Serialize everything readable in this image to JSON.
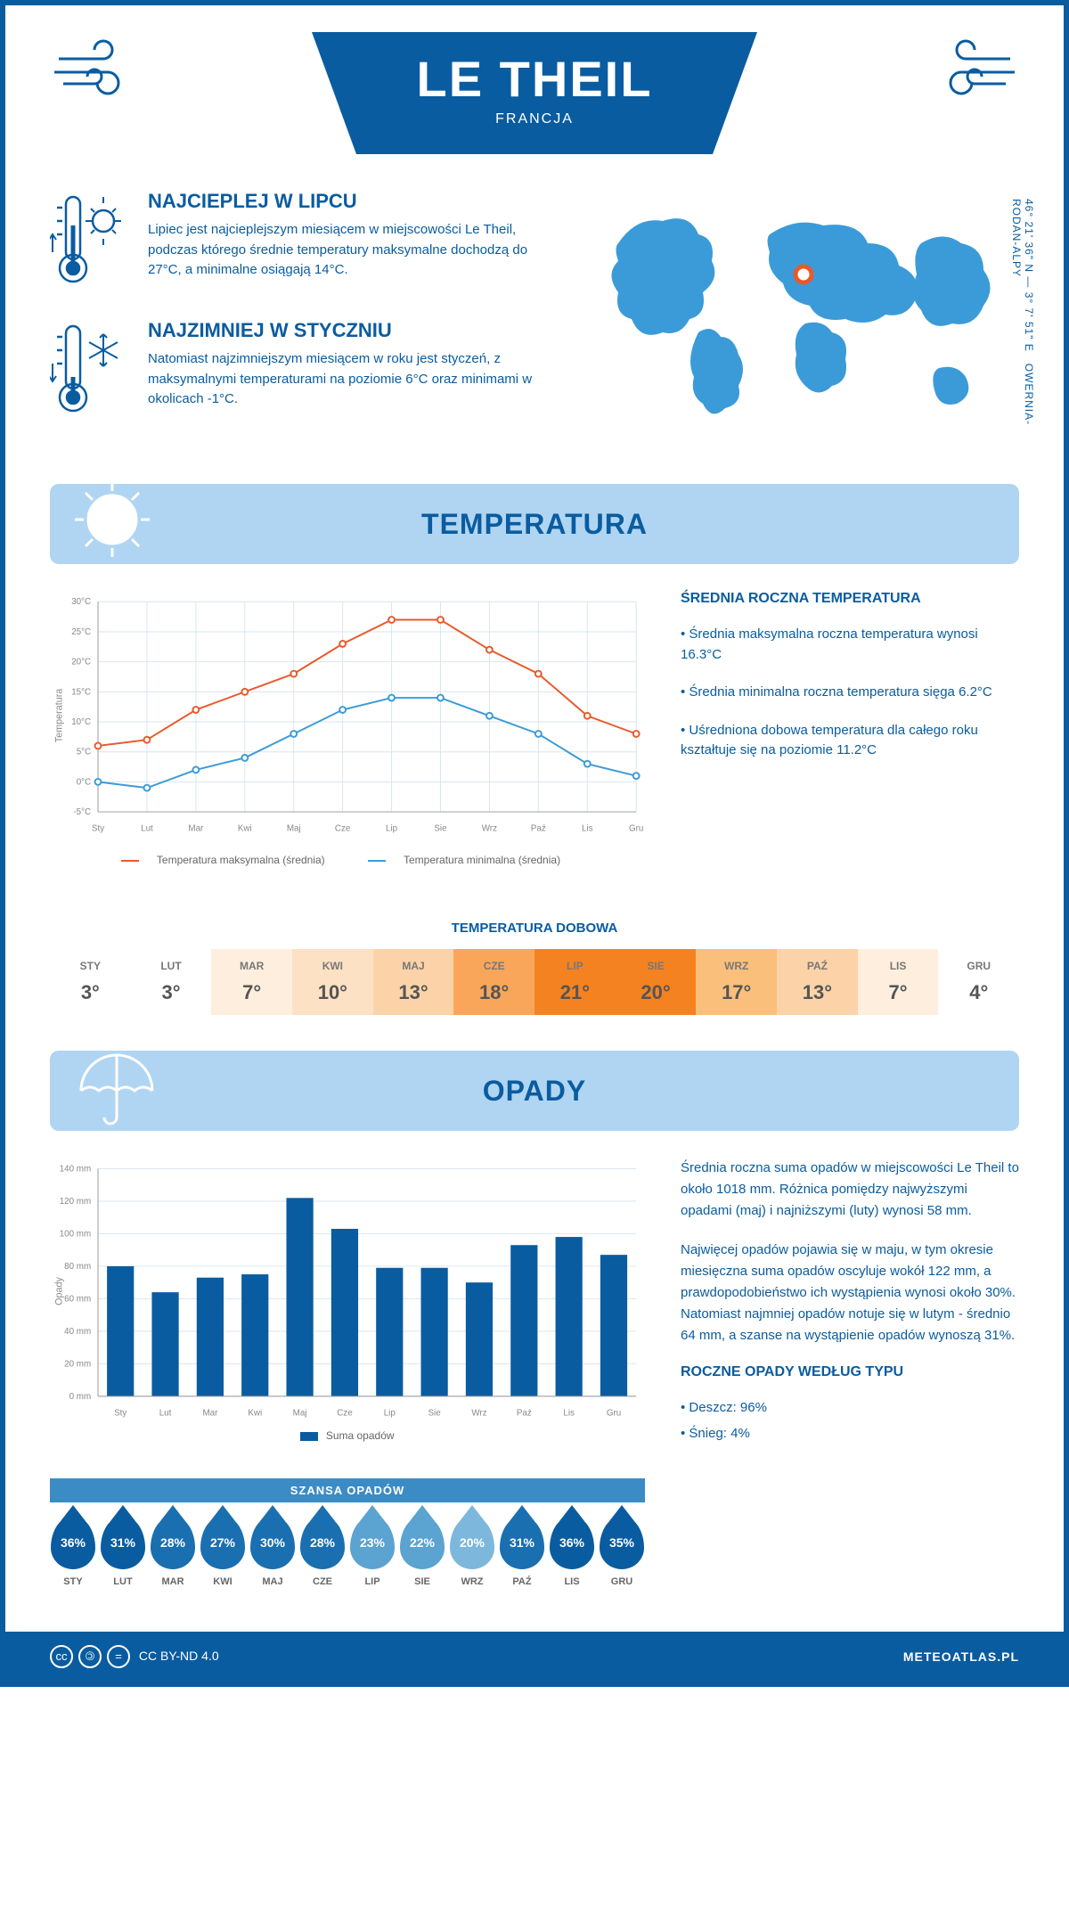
{
  "header": {
    "title": "LE THEIL",
    "subtitle": "FRANCJA"
  },
  "coords": {
    "text": "46° 21' 36\" N — 3° 7' 51\" E",
    "region": "OWERNIA-RODAN-ALPY"
  },
  "warmest": {
    "title": "NAJCIEPLEJ W LIPCU",
    "text": "Lipiec jest najcieplejszym miesiącem w miejscowości Le Theil, podczas którego średnie temperatury maksymalne dochodzą do 27°C, a minimalne osiągają 14°C."
  },
  "coldest": {
    "title": "NAJZIMNIEJ W STYCZNIU",
    "text": "Natomiast najzimniejszym miesiącem w roku jest styczeń, z maksymalnymi temperaturami na poziomie 6°C oraz minimami w okolicach -1°C."
  },
  "sec_temp": {
    "title": "TEMPERATURA"
  },
  "sec_rain": {
    "title": "OPADY"
  },
  "temp_chart": {
    "months": [
      "Sty",
      "Lut",
      "Mar",
      "Kwi",
      "Maj",
      "Cze",
      "Lip",
      "Sie",
      "Wrz",
      "Paź",
      "Lis",
      "Gru"
    ],
    "max": [
      6,
      7,
      12,
      15,
      18,
      23,
      27,
      27,
      22,
      18,
      11,
      8
    ],
    "min": [
      0,
      -1,
      2,
      4,
      8,
      12,
      14,
      14,
      11,
      8,
      3,
      1
    ],
    "max_color": "#e85a2a",
    "min_color": "#3b9bd8",
    "grid_color": "#d8e6f0",
    "ylim": [
      -5,
      30
    ],
    "ytick": 5,
    "ylabel": "Temperatura",
    "legend_max": "Temperatura maksymalna (średnia)",
    "legend_min": "Temperatura minimalna (średnia)"
  },
  "temp_side": {
    "title": "ŚREDNIA ROCZNA TEMPERATURA",
    "items": [
      "• Średnia maksymalna roczna temperatura wynosi 16.3°C",
      "• Średnia minimalna roczna temperatura sięga 6.2°C",
      "• Uśredniona dobowa temperatura dla całego roku kształtuje się na poziomie 11.2°C"
    ]
  },
  "daily": {
    "title": "TEMPERATURA DOBOWA",
    "months": [
      "STY",
      "LUT",
      "MAR",
      "KWI",
      "MAJ",
      "CZE",
      "LIP",
      "SIE",
      "WRZ",
      "PAŹ",
      "LIS",
      "GRU"
    ],
    "values": [
      "3°",
      "3°",
      "7°",
      "10°",
      "13°",
      "18°",
      "21°",
      "20°",
      "17°",
      "13°",
      "7°",
      "4°"
    ],
    "colors": [
      "#ffffff",
      "#ffffff",
      "#feeedd",
      "#fde1c4",
      "#fcd3a8",
      "#f9a65a",
      "#f58220",
      "#f58220",
      "#fbbf7c",
      "#fcd3a8",
      "#feeedd",
      "#ffffff"
    ]
  },
  "rain_chart": {
    "months": [
      "Sty",
      "Lut",
      "Mar",
      "Kwi",
      "Maj",
      "Cze",
      "Lip",
      "Sie",
      "Wrz",
      "Paź",
      "Lis",
      "Gru"
    ],
    "values": [
      80,
      64,
      73,
      75,
      122,
      103,
      79,
      79,
      70,
      93,
      98,
      87
    ],
    "bar_color": "#0a5ca0",
    "grid_color": "#d8e6f0",
    "ylim": [
      0,
      140
    ],
    "ytick": 20,
    "ylabel": "Opady",
    "legend": "Suma opadów"
  },
  "rain_side": {
    "p1": "Średnia roczna suma opadów w miejscowości Le Theil to około 1018 mm. Różnica pomiędzy najwyższymi opadami (maj) i najniższymi (luty) wynosi 58 mm.",
    "p2": "Najwięcej opadów pojawia się w maju, w tym okresie miesięczna suma opadów oscyluje wokół 122 mm, a prawdopodobieństwo ich wystąpienia wynosi około 30%. Natomiast najmniej opadów notuje się w lutym - średnio 64 mm, a szanse na wystąpienie opadów wynoszą 31%.",
    "type_h": "ROCZNE OPADY WEDŁUG TYPU",
    "type1": "• Deszcz: 96%",
    "type2": "• Śnieg: 4%"
  },
  "drops": {
    "title": "SZANSA OPADÓW",
    "months": [
      "STY",
      "LUT",
      "MAR",
      "KWI",
      "MAJ",
      "CZE",
      "LIP",
      "SIE",
      "WRZ",
      "PAŹ",
      "LIS",
      "GRU"
    ],
    "values": [
      "36%",
      "31%",
      "28%",
      "27%",
      "30%",
      "28%",
      "23%",
      "22%",
      "20%",
      "31%",
      "36%",
      "35%"
    ],
    "colors": [
      "#0a5ca0",
      "#0a5ca0",
      "#1a6fb0",
      "#1a6fb0",
      "#1a6fb0",
      "#1a6fb0",
      "#5ba3d0",
      "#5ba3d0",
      "#7db8dc",
      "#1a6fb0",
      "#0a5ca0",
      "#0a5ca0"
    ]
  },
  "footer": {
    "license": "CC BY-ND 4.0",
    "brand": "METEOATLAS.PL"
  }
}
